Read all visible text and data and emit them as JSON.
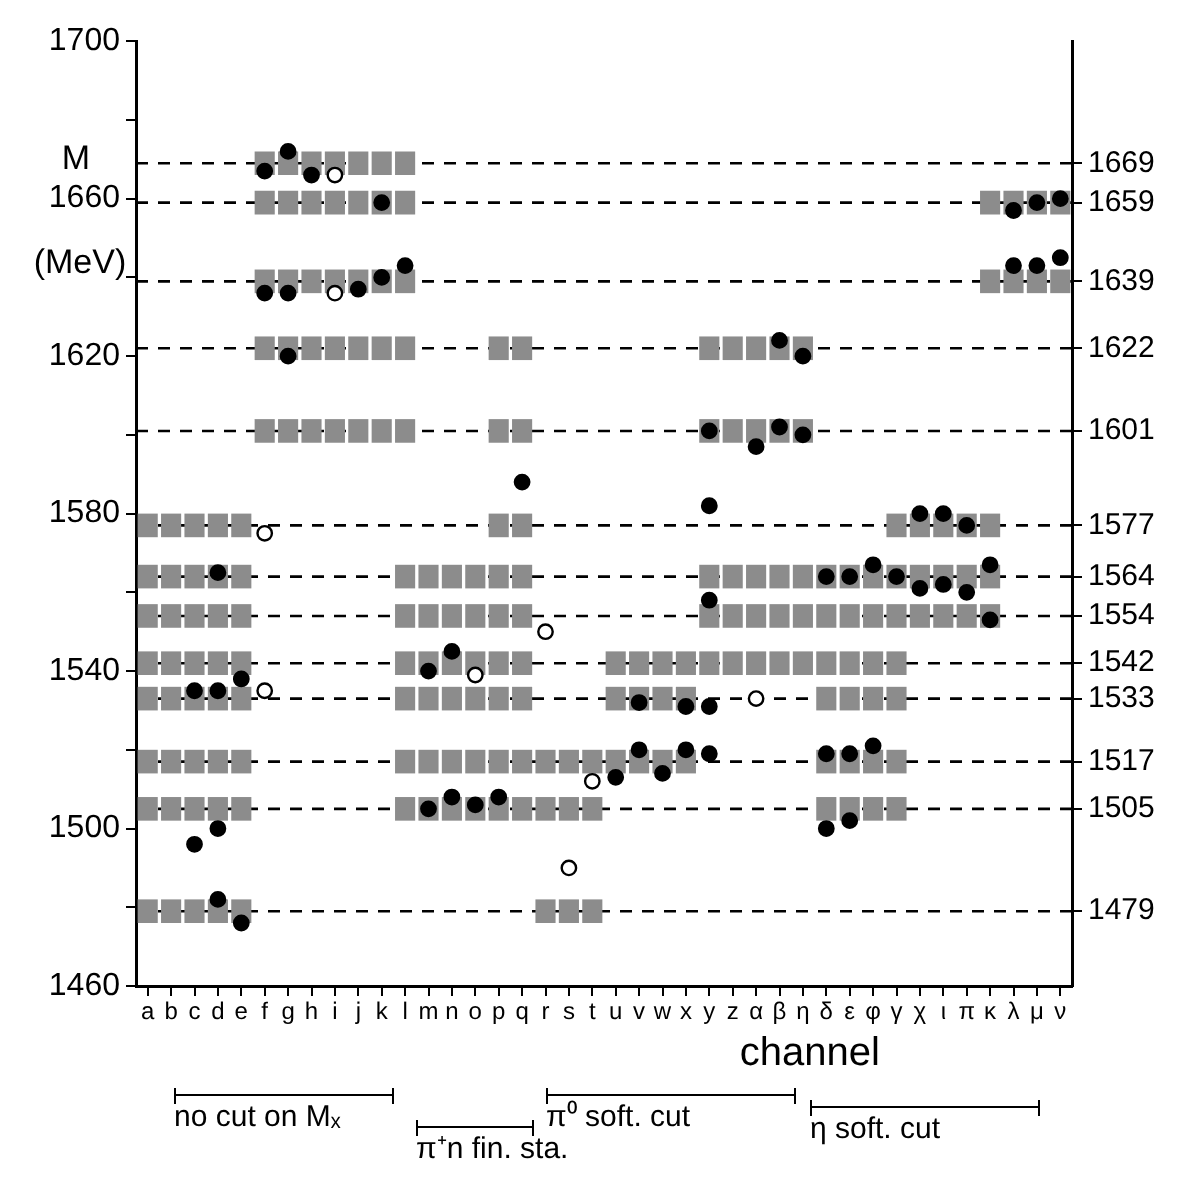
{
  "chart_data": {
    "type": "scatter",
    "xlabel": "channel",
    "ylabel": "M (MeV)",
    "marker": "circle",
    "categories": [
      "a",
      "b",
      "c",
      "d",
      "e",
      "f",
      "g",
      "h",
      "i",
      "j",
      "k",
      "l",
      "m",
      "n",
      "o",
      "p",
      "q",
      "r",
      "s",
      "t",
      "u",
      "v",
      "w",
      "x",
      "y",
      "z",
      "α",
      "β",
      "η",
      "δ",
      "ε",
      "φ",
      "γ",
      "χ",
      "ι",
      "π",
      "κ",
      "λ",
      "μ",
      "ν"
    ],
    "ylim": [
      1460,
      1700
    ],
    "yticks": [
      1460,
      {
        "value": 1480,
        "label": null
      },
      1500,
      {
        "value": 1520,
        "label": null
      },
      1540,
      {
        "value": 1560,
        "label": null
      },
      1580,
      {
        "value": 1600,
        "label": null
      },
      1620,
      {
        "value": 1640,
        "label": null
      },
      1660,
      {
        "value": 1680,
        "label": null
      },
      1700
    ],
    "y2lim": [
      1460,
      1700
    ],
    "y2ticks": [
      1479,
      1505,
      1517,
      1533,
      1542,
      1554,
      1564,
      1577,
      1601,
      1622,
      1639,
      1659,
      1669
    ],
    "ref_lines": [
      {
        "axis": "y",
        "value": 1669,
        "line_style": "dashed"
      },
      {
        "axis": "y",
        "value": 1659,
        "line_style": "dashed"
      },
      {
        "axis": "y",
        "value": 1639,
        "line_style": "dashed"
      },
      {
        "axis": "y",
        "value": 1622,
        "line_style": "dashed"
      },
      {
        "axis": "y",
        "value": 1601,
        "line_style": "dashed"
      },
      {
        "axis": "y",
        "value": 1577,
        "line_style": "dashed"
      },
      {
        "axis": "y",
        "value": 1564,
        "line_style": "dashed"
      },
      {
        "axis": "y",
        "value": 1554,
        "line_style": "dashed"
      },
      {
        "axis": "y",
        "value": 1542,
        "line_style": "dashed"
      },
      {
        "axis": "y",
        "value": 1533,
        "line_style": "dashed"
      },
      {
        "axis": "y",
        "value": 1517,
        "line_style": "dashed"
      },
      {
        "axis": "y",
        "value": 1505,
        "line_style": "dashed"
      },
      {
        "axis": "y",
        "value": 1479,
        "line_style": "dashed"
      }
    ],
    "annotations": [
      "no cut on Mₓ",
      "π⁺n fin. sta.",
      "π⁰ soft. cut",
      "η soft. cut"
    ],
    "series": [
      {
        "type": "bar",
        "color": "#8c8c8c",
        "values": [
          null,
          null,
          null,
          null,
          null,
          6,
          6,
          6,
          6,
          6,
          6,
          6,
          null,
          null,
          null,
          null,
          null,
          null,
          null,
          null,
          null,
          null,
          null,
          null,
          null,
          null,
          null,
          null,
          null,
          null,
          null,
          null,
          null,
          null,
          null,
          null,
          null,
          null,
          null,
          null
        ],
        "base": [
          null,
          null,
          null,
          null,
          null,
          1666,
          1666,
          1666,
          1666,
          1666,
          1666,
          1666,
          null,
          null,
          null,
          null,
          null,
          null,
          null,
          null,
          null,
          null,
          null,
          null,
          null,
          null,
          null,
          null,
          null,
          null,
          null,
          null,
          null,
          null,
          null,
          null,
          null,
          null,
          null,
          null
        ]
      },
      {
        "type": "bar",
        "color": "#8c8c8c",
        "values": [
          null,
          null,
          null,
          null,
          null,
          6,
          6,
          6,
          6,
          6,
          6,
          6,
          null,
          null,
          null,
          null,
          null,
          null,
          null,
          null,
          null,
          null,
          null,
          null,
          null,
          null,
          null,
          null,
          null,
          null,
          null,
          null,
          null,
          null,
          null,
          null,
          6,
          6,
          6,
          6
        ],
        "base": [
          null,
          null,
          null,
          null,
          null,
          1656,
          1656,
          1656,
          1656,
          1656,
          1656,
          1656,
          null,
          null,
          null,
          null,
          null,
          null,
          null,
          null,
          null,
          null,
          null,
          null,
          null,
          null,
          null,
          null,
          null,
          null,
          null,
          null,
          null,
          null,
          null,
          null,
          1656,
          1656,
          1656,
          1656
        ]
      },
      {
        "type": "bar",
        "color": "#8c8c8c",
        "values": [
          null,
          null,
          null,
          null,
          null,
          6,
          6,
          6,
          6,
          6,
          6,
          6,
          null,
          null,
          null,
          null,
          null,
          null,
          null,
          null,
          null,
          null,
          null,
          null,
          null,
          null,
          null,
          null,
          null,
          null,
          null,
          null,
          null,
          null,
          null,
          null,
          6,
          6,
          6,
          6
        ],
        "base": [
          null,
          null,
          null,
          null,
          null,
          1636,
          1636,
          1636,
          1636,
          1636,
          1636,
          1636,
          null,
          null,
          null,
          null,
          null,
          null,
          null,
          null,
          null,
          null,
          null,
          null,
          null,
          null,
          null,
          null,
          null,
          null,
          null,
          null,
          null,
          null,
          null,
          null,
          1636,
          1636,
          1636,
          1636
        ]
      },
      {
        "type": "bar",
        "color": "#8c8c8c",
        "values": [
          null,
          null,
          null,
          null,
          null,
          6,
          6,
          6,
          6,
          6,
          6,
          6,
          null,
          null,
          null,
          6,
          6,
          null,
          null,
          null,
          null,
          null,
          null,
          null,
          6,
          6,
          6,
          6,
          6,
          null,
          null,
          null,
          null,
          null,
          null,
          null,
          null,
          null,
          null,
          null
        ],
        "base": [
          null,
          null,
          null,
          null,
          null,
          1619,
          1619,
          1619,
          1619,
          1619,
          1619,
          1619,
          null,
          null,
          null,
          1619,
          1619,
          null,
          null,
          null,
          null,
          null,
          null,
          null,
          1619,
          1619,
          1619,
          1619,
          1619,
          null,
          null,
          null,
          null,
          null,
          null,
          null,
          null,
          null,
          null,
          null
        ]
      },
      {
        "type": "bar",
        "color": "#8c8c8c",
        "values": [
          null,
          null,
          null,
          null,
          null,
          6,
          6,
          6,
          6,
          6,
          6,
          6,
          null,
          null,
          null,
          6,
          6,
          null,
          null,
          null,
          null,
          null,
          null,
          null,
          6,
          6,
          6,
          6,
          6,
          null,
          null,
          null,
          null,
          null,
          null,
          null,
          null,
          null,
          null,
          null
        ],
        "base": [
          null,
          null,
          null,
          null,
          null,
          1598,
          1598,
          1598,
          1598,
          1598,
          1598,
          1598,
          null,
          null,
          null,
          1598,
          1598,
          null,
          null,
          null,
          null,
          null,
          null,
          null,
          1598,
          1598,
          1598,
          1598,
          1598,
          null,
          null,
          null,
          null,
          null,
          null,
          null,
          null,
          null,
          null,
          null
        ]
      },
      {
        "type": "bar",
        "color": "#8c8c8c",
        "values": [
          6,
          6,
          6,
          6,
          6,
          null,
          null,
          null,
          null,
          null,
          null,
          null,
          null,
          null,
          null,
          6,
          6,
          null,
          null,
          null,
          null,
          null,
          null,
          null,
          null,
          null,
          null,
          null,
          null,
          null,
          null,
          null,
          6,
          6,
          6,
          6,
          6,
          null,
          null,
          null
        ],
        "base": [
          1574,
          1574,
          1574,
          1574,
          1574,
          null,
          null,
          null,
          null,
          null,
          null,
          null,
          null,
          null,
          null,
          1574,
          1574,
          null,
          null,
          null,
          null,
          null,
          null,
          null,
          null,
          null,
          null,
          null,
          null,
          null,
          null,
          null,
          1574,
          1574,
          1574,
          1574,
          1574,
          null,
          null,
          null
        ]
      },
      {
        "type": "bar",
        "color": "#8c8c8c",
        "values": [
          6,
          6,
          6,
          6,
          6,
          null,
          null,
          null,
          null,
          null,
          null,
          6,
          6,
          6,
          6,
          6,
          6,
          null,
          null,
          null,
          null,
          null,
          null,
          null,
          6,
          6,
          6,
          6,
          6,
          6,
          6,
          6,
          6,
          6,
          6,
          6,
          6,
          null,
          null,
          null
        ],
        "base": [
          1561,
          1561,
          1561,
          1561,
          1561,
          null,
          null,
          null,
          null,
          null,
          null,
          1561,
          1561,
          1561,
          1561,
          1561,
          1561,
          null,
          null,
          null,
          null,
          null,
          null,
          null,
          1561,
          1561,
          1561,
          1561,
          1561,
          1561,
          1561,
          1561,
          1561,
          1561,
          1561,
          1561,
          1561,
          null,
          null,
          null
        ]
      },
      {
        "type": "bar",
        "color": "#8c8c8c",
        "values": [
          6,
          6,
          6,
          6,
          6,
          null,
          null,
          null,
          null,
          null,
          null,
          6,
          6,
          6,
          6,
          6,
          6,
          null,
          null,
          null,
          null,
          null,
          null,
          null,
          6,
          6,
          6,
          6,
          6,
          6,
          6,
          6,
          6,
          6,
          6,
          6,
          6,
          null,
          null,
          null
        ],
        "base": [
          1551,
          1551,
          1551,
          1551,
          1551,
          null,
          null,
          null,
          null,
          null,
          null,
          1551,
          1551,
          1551,
          1551,
          1551,
          1551,
          null,
          null,
          null,
          null,
          null,
          null,
          null,
          1551,
          1551,
          1551,
          1551,
          1551,
          1551,
          1551,
          1551,
          1551,
          1551,
          1551,
          1551,
          1551,
          null,
          null,
          null
        ]
      },
      {
        "type": "bar",
        "color": "#8c8c8c",
        "values": [
          6,
          6,
          6,
          6,
          6,
          null,
          null,
          null,
          null,
          null,
          null,
          6,
          6,
          6,
          6,
          6,
          6,
          null,
          null,
          null,
          6,
          6,
          6,
          6,
          6,
          6,
          6,
          6,
          6,
          6,
          6,
          6,
          6,
          null,
          null,
          null,
          null,
          null,
          null,
          null
        ],
        "base": [
          1539,
          1539,
          1539,
          1539,
          1539,
          null,
          null,
          null,
          null,
          null,
          null,
          1539,
          1539,
          1539,
          1539,
          1539,
          1539,
          null,
          null,
          null,
          1539,
          1539,
          1539,
          1539,
          1539,
          1539,
          1539,
          1539,
          1539,
          1539,
          1539,
          1539,
          1539,
          null,
          null,
          null,
          null,
          null,
          null,
          null
        ]
      },
      {
        "type": "bar",
        "color": "#8c8c8c",
        "values": [
          6,
          6,
          6,
          6,
          6,
          null,
          null,
          null,
          null,
          null,
          null,
          6,
          6,
          6,
          6,
          6,
          6,
          null,
          null,
          null,
          6,
          6,
          6,
          6,
          null,
          null,
          null,
          null,
          null,
          6,
          6,
          6,
          6,
          null,
          null,
          null,
          null,
          null,
          null,
          null
        ],
        "base": [
          1530,
          1530,
          1530,
          1530,
          1530,
          null,
          null,
          null,
          null,
          null,
          null,
          1530,
          1530,
          1530,
          1530,
          1530,
          1530,
          null,
          null,
          null,
          1530,
          1530,
          1530,
          1530,
          null,
          null,
          null,
          null,
          null,
          1530,
          1530,
          1530,
          1530,
          null,
          null,
          null,
          null,
          null,
          null,
          null
        ]
      },
      {
        "type": "bar",
        "color": "#8c8c8c",
        "values": [
          6,
          6,
          6,
          6,
          6,
          null,
          null,
          null,
          null,
          null,
          null,
          6,
          6,
          6,
          6,
          6,
          6,
          6,
          6,
          6,
          6,
          6,
          6,
          6,
          null,
          null,
          null,
          null,
          null,
          6,
          6,
          6,
          6,
          null,
          null,
          null,
          null,
          null,
          null,
          null
        ],
        "base": [
          1514,
          1514,
          1514,
          1514,
          1514,
          null,
          null,
          null,
          null,
          null,
          null,
          1514,
          1514,
          1514,
          1514,
          1514,
          1514,
          1514,
          1514,
          1514,
          1514,
          1514,
          1514,
          1514,
          null,
          null,
          null,
          null,
          null,
          1514,
          1514,
          1514,
          1514,
          null,
          null,
          null,
          null,
          null,
          null,
          null
        ]
      },
      {
        "type": "bar",
        "color": "#8c8c8c",
        "values": [
          6,
          6,
          6,
          6,
          6,
          null,
          null,
          null,
          null,
          null,
          null,
          6,
          6,
          6,
          6,
          6,
          6,
          6,
          6,
          6,
          null,
          null,
          null,
          null,
          null,
          null,
          null,
          null,
          null,
          6,
          6,
          6,
          6,
          null,
          null,
          null,
          null,
          null,
          null,
          null
        ],
        "base": [
          1502,
          1502,
          1502,
          1502,
          1502,
          null,
          null,
          null,
          null,
          null,
          null,
          1502,
          1502,
          1502,
          1502,
          1502,
          1502,
          1502,
          1502,
          1502,
          null,
          null,
          null,
          null,
          null,
          null,
          null,
          null,
          null,
          1502,
          1502,
          1502,
          1502,
          null,
          null,
          null,
          null,
          null,
          null,
          null
        ]
      },
      {
        "type": "bar",
        "color": "#8c8c8c",
        "values": [
          6,
          6,
          6,
          6,
          6,
          null,
          null,
          null,
          null,
          null,
          null,
          null,
          null,
          null,
          null,
          null,
          null,
          6,
          6,
          6,
          null,
          null,
          null,
          null,
          null,
          null,
          null,
          null,
          null,
          null,
          null,
          null,
          null,
          null,
          null,
          null,
          null,
          null,
          null,
          null
        ],
        "base": [
          1476,
          1476,
          1476,
          1476,
          1476,
          null,
          null,
          null,
          null,
          null,
          null,
          null,
          null,
          null,
          null,
          null,
          null,
          1476,
          1476,
          1476,
          null,
          null,
          null,
          null,
          null,
          null,
          null,
          null,
          null,
          null,
          null,
          null,
          null,
          null,
          null,
          null,
          null,
          null,
          null,
          null
        ]
      },
      {
        "color": "#000000",
        "x": [
          "g",
          "f",
          "h",
          "k",
          "f",
          "g",
          "j",
          "k",
          "l",
          "g",
          "q",
          "d",
          "c",
          "d",
          "e",
          "c",
          "d",
          "d",
          "e",
          "n",
          "m",
          "u",
          "v",
          "w",
          "x",
          "y",
          "v",
          "x",
          "y",
          "m",
          "n",
          "o",
          "p",
          "λ",
          "μ",
          "ν",
          "λ",
          "μ",
          "ν",
          "β",
          "η",
          "y",
          "α",
          "β",
          "η",
          "y",
          "χ",
          "ι",
          "π",
          "δ",
          "ε",
          "φ",
          "γ",
          "χ",
          "ι",
          "π",
          "κ",
          "κ",
          "y",
          "δ",
          "ε",
          "δ",
          "ε",
          "φ"
        ],
        "values": [
          1672,
          1667,
          1666,
          1659,
          1636,
          1636,
          1637,
          1640,
          1643,
          1620,
          1588,
          1565,
          1535,
          1535,
          1538,
          1496,
          1500,
          1482,
          1476,
          1545,
          1540,
          1513,
          1520,
          1514,
          1520,
          1519,
          1532,
          1531,
          1531,
          1505,
          1508,
          1506,
          1508,
          1657,
          1659,
          1660,
          1643,
          1643,
          1645,
          1624,
          1620,
          1601,
          1597,
          1602,
          1600,
          1582,
          1580,
          1580,
          1577,
          1564,
          1564,
          1567,
          1564,
          1561,
          1562,
          1560,
          1567,
          1553,
          1558,
          1500,
          1502,
          1519,
          1519,
          1521
        ]
      },
      {
        "color": "#ffffff",
        "x": [
          "i",
          "i",
          "f",
          "f",
          "r",
          "o",
          "t",
          "s",
          "α"
        ],
        "values": [
          1666,
          1636,
          1575,
          1535,
          1550,
          1539,
          1512,
          1490,
          1533
        ]
      }
    ]
  }
}
